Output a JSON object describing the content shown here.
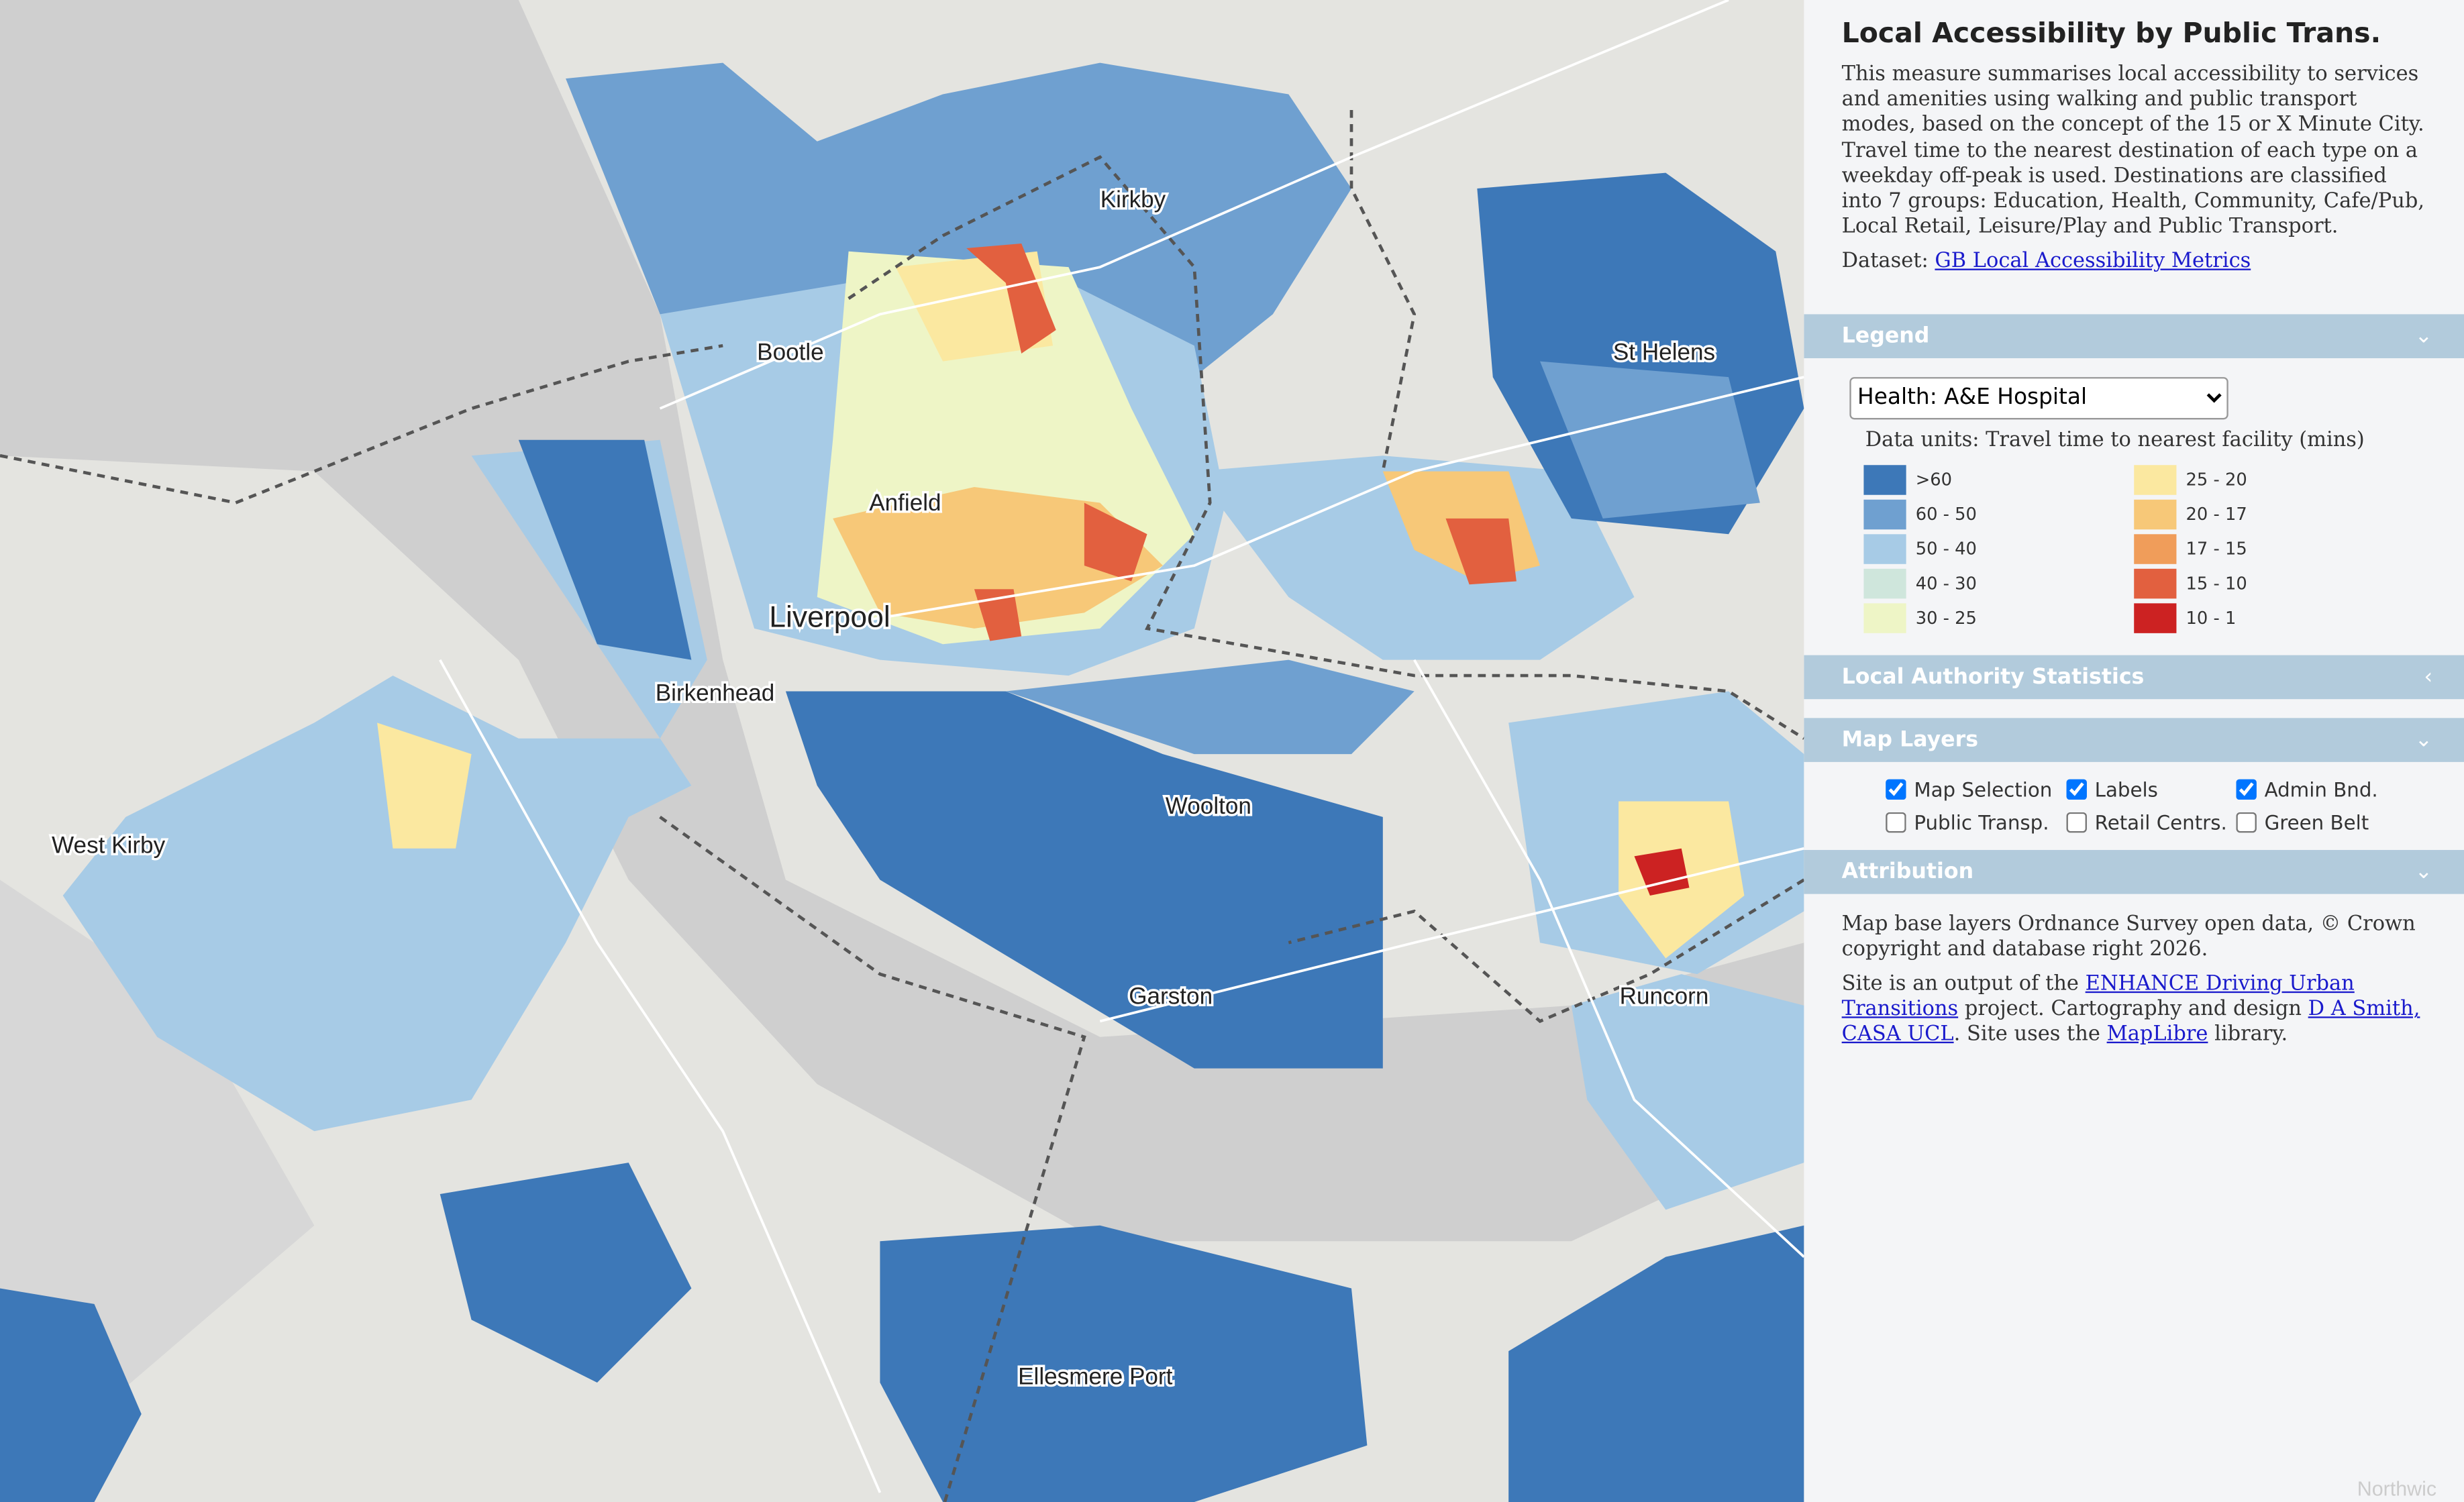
{
  "map": {
    "labels": [
      "Kirkby",
      "Bootle",
      "St Helens",
      "Anfield",
      "Liverpool",
      "Birkenhead",
      "West Kirby",
      "Woolton",
      "Garston",
      "Runcorn",
      "Ellesmere Port",
      "Northwic"
    ]
  },
  "sidebar": {
    "title": "Local Accessibility by Public Trans.",
    "description": "This measure summarises local accessibility to services and amenities using walking and public transport modes, based on the concept of the 15 or X Minute City. Travel time to the nearest destination of each type on a weekday off-peak is used. Destinations are classified into 7 groups: Education, Health, Community, Cafe/Pub, Local Retail, Leisure/Play and Public Transport.",
    "dataset_label": "Dataset:",
    "dataset_link": "GB Local Accessibility Metrics",
    "legend": {
      "heading": "Legend",
      "selected": "Health: A&E Hospital",
      "units": "Data units: Travel time to nearest facility (mins)",
      "items": [
        {
          "label": ">60",
          "color": "#3d78b8"
        },
        {
          "label": "60 - 50",
          "color": "#6fa0d0"
        },
        {
          "label": "50 - 40",
          "color": "#a7cbe6"
        },
        {
          "label": "40 - 30",
          "color": "#cfe6dc"
        },
        {
          "label": "30 - 25",
          "color": "#eef5c6"
        },
        {
          "label": "25 - 20",
          "color": "#fbe8a0"
        },
        {
          "label": "20 - 17",
          "color": "#f7c878"
        },
        {
          "label": "17 - 15",
          "color": "#f09d5a"
        },
        {
          "label": "15 - 10",
          "color": "#e2603f"
        },
        {
          "label": "10 - 1",
          "color": "#cc2222"
        }
      ]
    },
    "stats_heading": "Local Authority Statistics",
    "layers": {
      "heading": "Map Layers",
      "options": [
        {
          "label": "Map Selection",
          "checked": true
        },
        {
          "label": "Labels",
          "checked": true
        },
        {
          "label": "Admin Bnd.",
          "checked": true
        },
        {
          "label": "Public Transp.",
          "checked": false
        },
        {
          "label": "Retail Centrs.",
          "checked": false
        },
        {
          "label": "Green Belt",
          "checked": false
        }
      ]
    },
    "attribution": {
      "heading": "Attribution",
      "line1": "Map base layers Ordnance Survey open data, © Crown copyright and database right 2026.",
      "line2_a": "Site is an output of the",
      "line2_link1": "ENHANCE Driving Urban Transitions",
      "line2_b": "project. Cartography and design",
      "line2_link2": "D A Smith, CASA UCL",
      "line2_c": ". Site uses the",
      "line2_link3": "MapLibre",
      "line2_d": "library."
    }
  }
}
